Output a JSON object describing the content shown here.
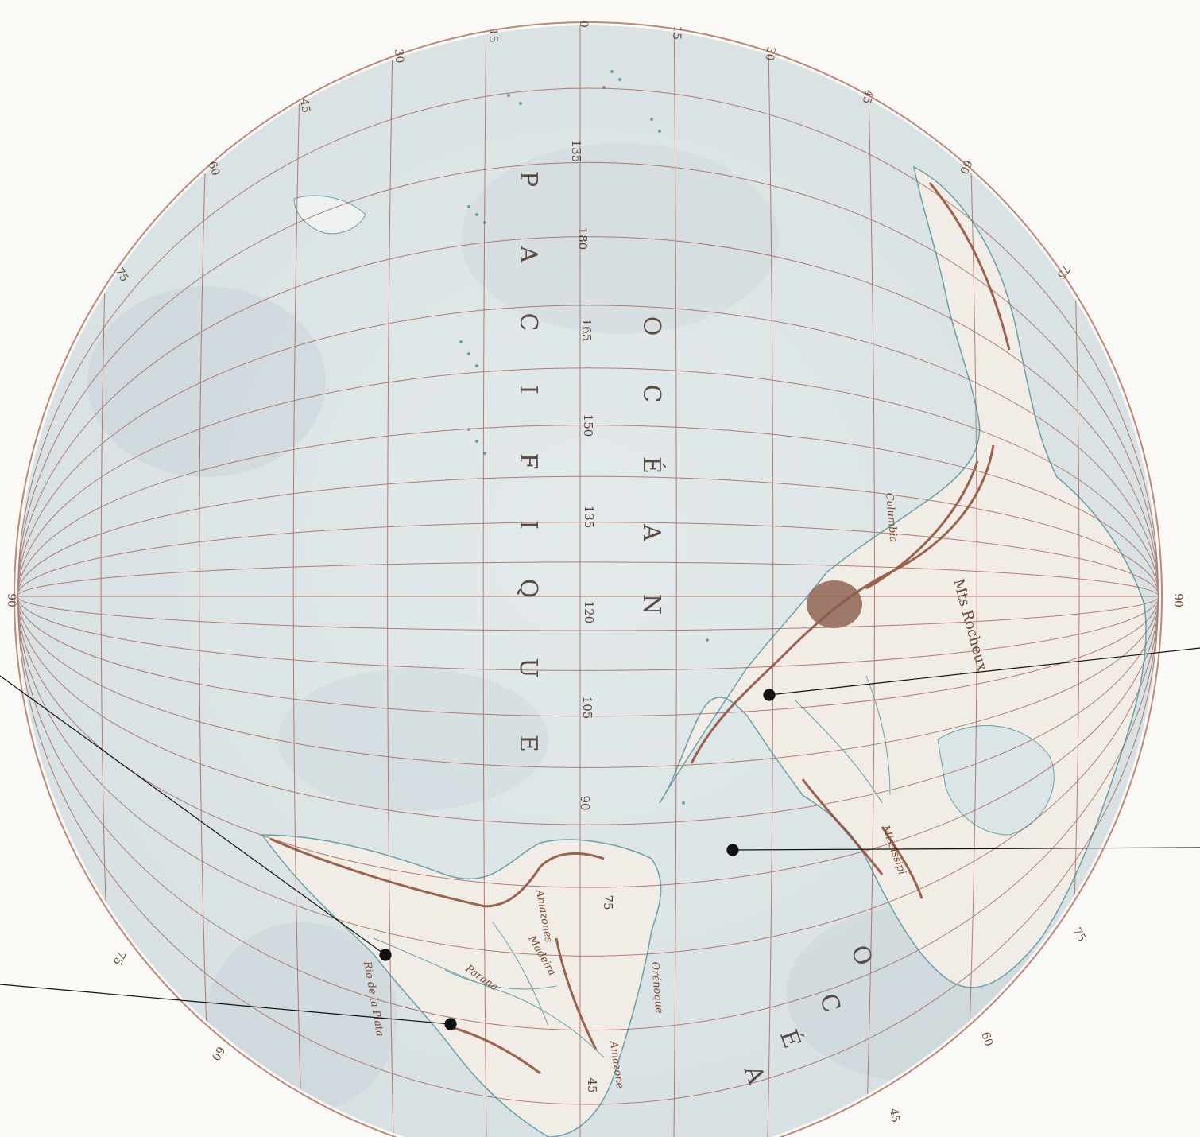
{
  "map": {
    "ocean_title_letters": [
      "O",
      "C",
      "É",
      "A",
      "N"
    ],
    "ocean_name_letters": [
      "P",
      "A",
      "C",
      "I",
      "F",
      "I",
      "Q",
      "U",
      "E"
    ],
    "atlantic_letters": [
      "O",
      "C",
      "É",
      "A"
    ],
    "longitude_labels": [
      "135",
      "180",
      "165",
      "150",
      "135",
      "120",
      "105",
      "90",
      "75",
      "45"
    ],
    "rim_labels": {
      "left_pole": "90",
      "right_pole": "90",
      "left_side": [
        "75",
        "60",
        "45",
        "30",
        "15",
        "0",
        "15",
        "30",
        "45",
        "60",
        "75"
      ],
      "right_side": [
        "60",
        "75",
        "75",
        "60",
        "45"
      ]
    },
    "place_names": {
      "columbia": "Columbia",
      "rocky_mountains": "Mts Rocheux",
      "amazone": "Amazone",
      "orenoque": "Orénoque",
      "rio_de_la_plata": "Rio de la Plata",
      "parana": "Parana",
      "madeira": "Madeira",
      "mississipi": "Mississipi",
      "amazones": "Amazones"
    },
    "colors": {
      "paper": "#fbf9f6",
      "ocean": "#dfe6e8",
      "land": "#f3efe8",
      "graticule": "#9c5a4a",
      "mountains": "#8a4a35",
      "coast": "#6aa0a8",
      "pointer": "#111111"
    }
  }
}
